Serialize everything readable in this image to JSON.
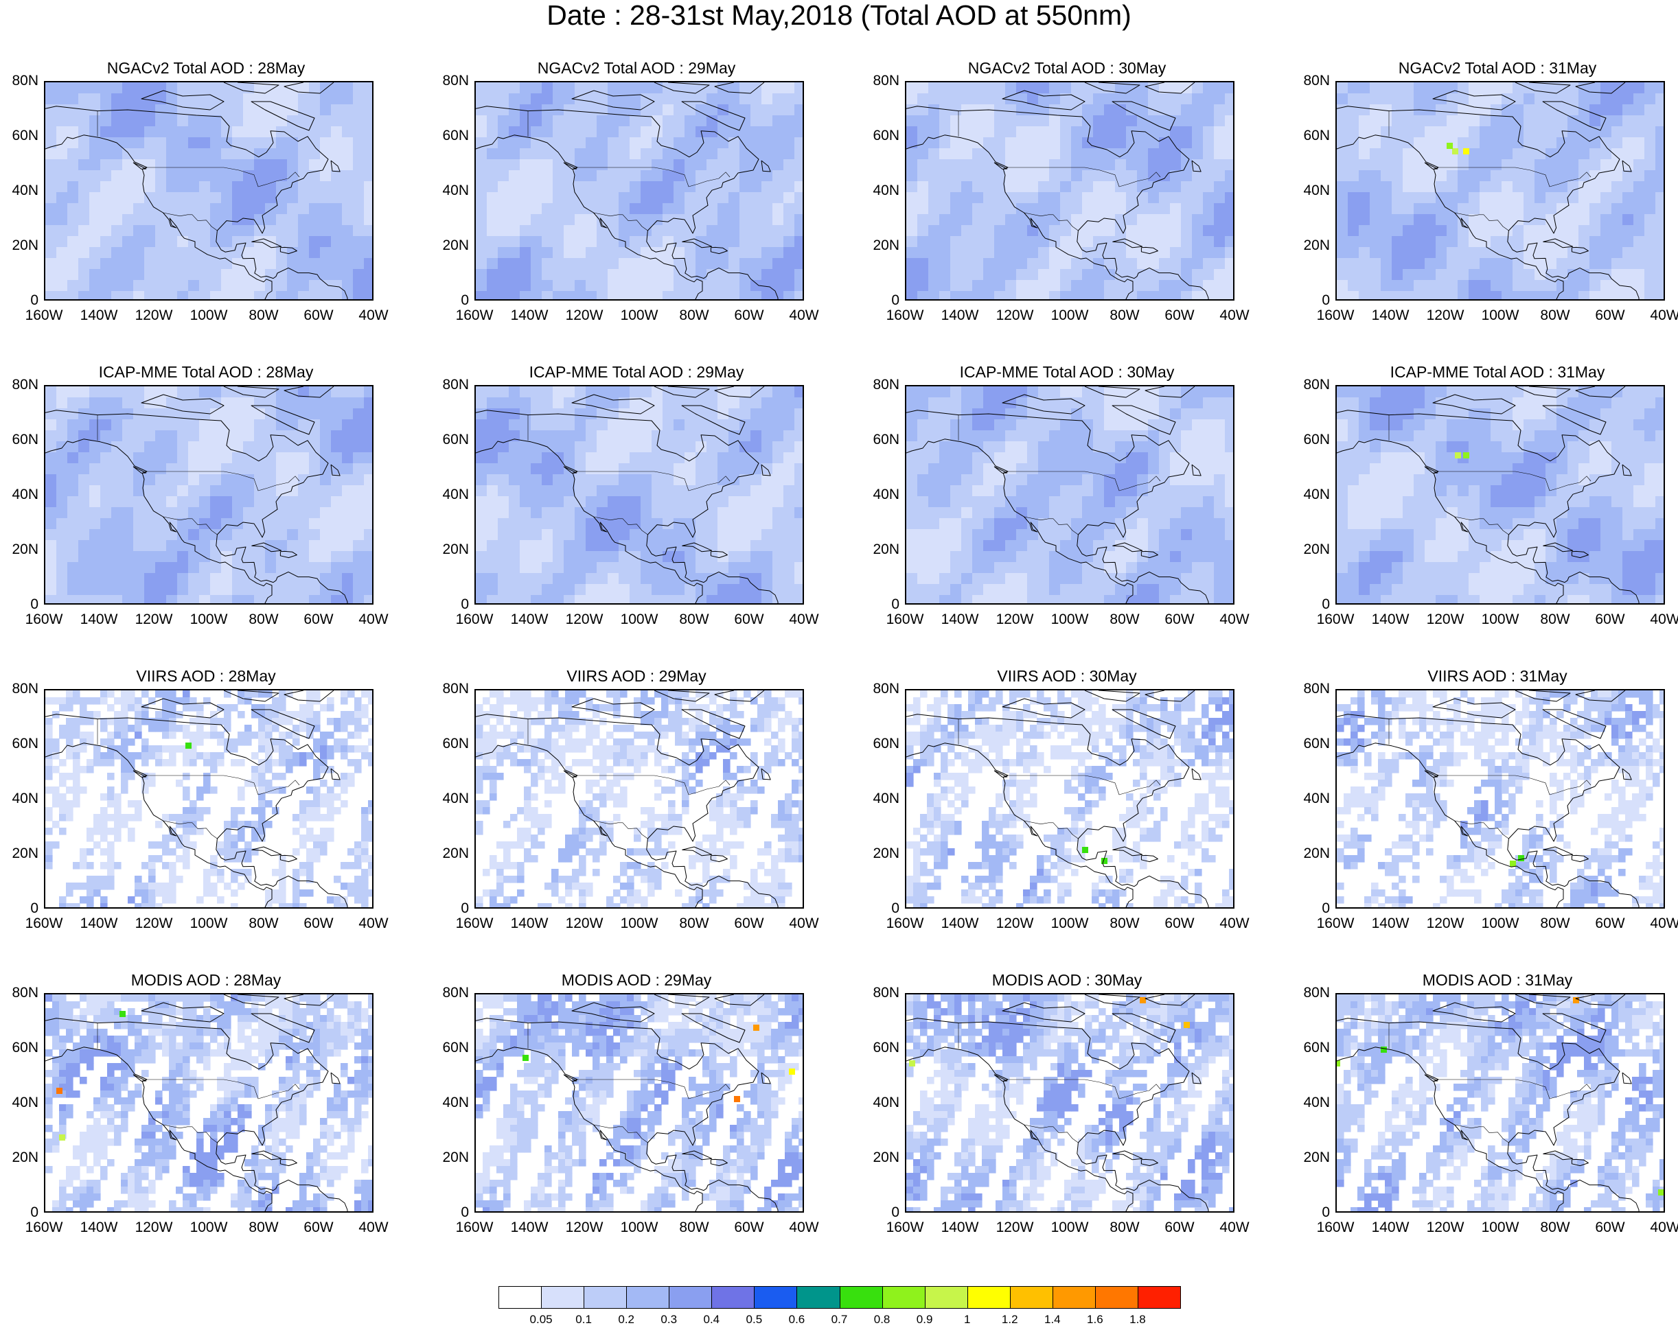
{
  "title": "Date : 28-31st May,2018 (Total AOD at 550nm)",
  "axes": {
    "y_ticks": [
      "80N",
      "60N",
      "40N",
      "20N",
      "0"
    ],
    "x_ticks": [
      "160W",
      "140W",
      "120W",
      "100W",
      "80W",
      "60W",
      "40W"
    ],
    "lon_range": [
      -160,
      -40
    ],
    "lat_range": [
      0,
      80
    ]
  },
  "panels": [
    {
      "title": "NGACv2 Total AOD : 28May",
      "product": "model",
      "seed": 11,
      "hotspots": []
    },
    {
      "title": "NGACv2 Total AOD : 29May",
      "product": "model",
      "seed": 12,
      "hotspots": []
    },
    {
      "title": "NGACv2 Total AOD : 30May",
      "product": "model",
      "seed": 13,
      "hotspots": []
    },
    {
      "title": "NGACv2 Total AOD : 31May",
      "product": "model",
      "seed": 14,
      "hotspots": [
        {
          "lon": -117,
          "lat": 55,
          "level": 10
        },
        {
          "lon": -113,
          "lat": 55,
          "level": 11
        },
        {
          "lon": -119,
          "lat": 57,
          "level": 9
        }
      ]
    },
    {
      "title": "ICAP-MME Total AOD : 28May",
      "product": "model",
      "seed": 21,
      "hotspots": []
    },
    {
      "title": "ICAP-MME Total AOD : 29May",
      "product": "model",
      "seed": 22,
      "hotspots": []
    },
    {
      "title": "ICAP-MME Total AOD : 30May",
      "product": "model",
      "seed": 23,
      "hotspots": []
    },
    {
      "title": "ICAP-MME Total AOD : 31May",
      "product": "model",
      "seed": 24,
      "hotspots": [
        {
          "lon": -116,
          "lat": 55,
          "level": 10
        },
        {
          "lon": -113,
          "lat": 55,
          "level": 9
        }
      ]
    },
    {
      "title": "VIIRS AOD : 28May",
      "product": "viirs",
      "seed": 31,
      "hotspots": [
        {
          "lon": -108,
          "lat": 60,
          "level": 8
        }
      ]
    },
    {
      "title": "VIIRS AOD : 29May",
      "product": "viirs",
      "seed": 32,
      "hotspots": []
    },
    {
      "title": "VIIRS AOD : 30May",
      "product": "viirs",
      "seed": 33,
      "hotspots": [
        {
          "lon": -95,
          "lat": 22,
          "level": 8
        },
        {
          "lon": -88,
          "lat": 18,
          "level": 8
        }
      ]
    },
    {
      "title": "VIIRS AOD : 31May",
      "product": "viirs",
      "seed": 34,
      "hotspots": [
        {
          "lon": -93,
          "lat": 19,
          "level": 8
        },
        {
          "lon": -96,
          "lat": 17,
          "level": 9
        }
      ]
    },
    {
      "title": "MODIS AOD : 28May",
      "product": "modis",
      "seed": 41,
      "hotspots": [
        {
          "lon": -155,
          "lat": 45,
          "level": 14
        },
        {
          "lon": -154,
          "lat": 28,
          "level": 10
        },
        {
          "lon": -132,
          "lat": 73,
          "level": 8
        }
      ]
    },
    {
      "title": "MODIS AOD : 29May",
      "product": "modis",
      "seed": 42,
      "hotspots": [
        {
          "lon": -58,
          "lat": 68,
          "level": 13
        },
        {
          "lon": -45,
          "lat": 52,
          "level": 11
        },
        {
          "lon": -65,
          "lat": 42,
          "level": 14
        },
        {
          "lon": -142,
          "lat": 57,
          "level": 8
        }
      ]
    },
    {
      "title": "MODIS AOD : 30May",
      "product": "modis",
      "seed": 43,
      "hotspots": [
        {
          "lon": -74,
          "lat": 78,
          "level": 13
        },
        {
          "lon": -58,
          "lat": 69,
          "level": 12
        },
        {
          "lon": -158,
          "lat": 55,
          "level": 10
        }
      ]
    },
    {
      "title": "MODIS AOD : 31May",
      "product": "modis",
      "seed": 44,
      "hotspots": [
        {
          "lon": -73,
          "lat": 78,
          "level": 13
        },
        {
          "lon": -143,
          "lat": 60,
          "level": 8
        },
        {
          "lon": -42,
          "lat": 8,
          "level": 9
        },
        {
          "lon": -160,
          "lat": 55,
          "level": 9
        }
      ]
    }
  ],
  "colorbar": {
    "colors": [
      "#ffffff",
      "#d7e0fb",
      "#bdcdf8",
      "#a3b9f5",
      "#8a9ff0",
      "#6f73e6",
      "#1a5cf0",
      "#00958b",
      "#38e00e",
      "#8ff21c",
      "#c7f54a",
      "#ffff00",
      "#ffc000",
      "#ff9900",
      "#ff7700",
      "#ff2000"
    ],
    "labels": [
      "0.05",
      "0.1",
      "0.2",
      "0.3",
      "0.4",
      "0.5",
      "0.6",
      "0.7",
      "0.8",
      "0.9",
      "1",
      "1.2",
      "1.4",
      "1.6",
      "1.8"
    ]
  }
}
